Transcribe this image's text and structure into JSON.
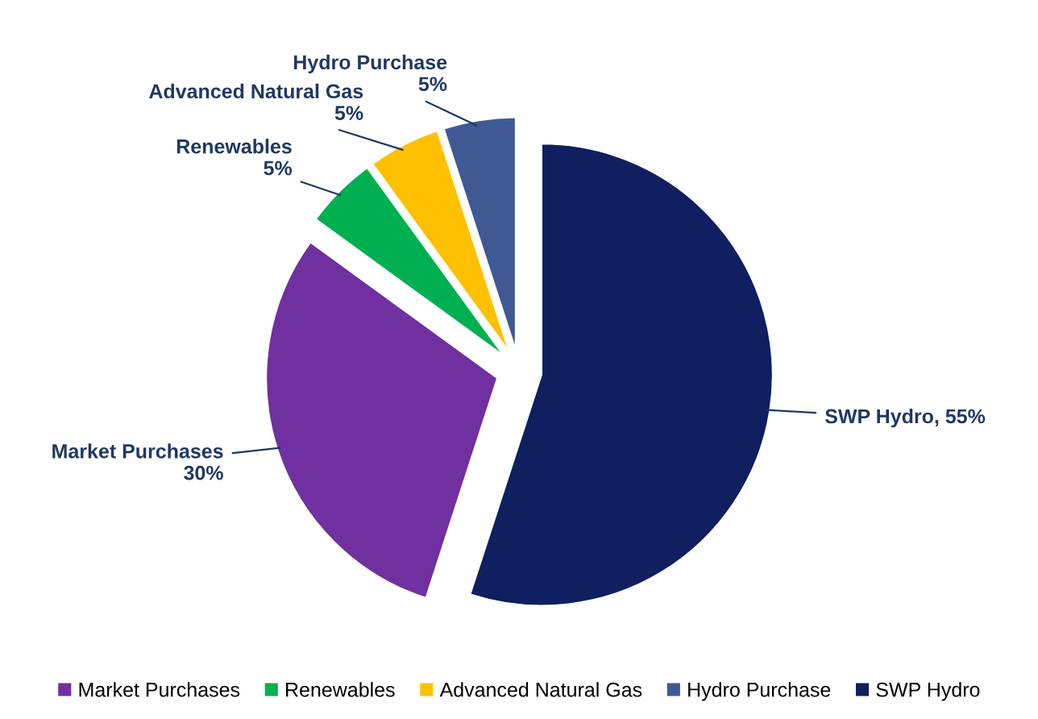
{
  "chart_data": {
    "type": "pie",
    "categories": [
      "Market Purchases",
      "Renewables",
      "Advanced Natural Gas",
      "Hydro Purchase",
      "SWP Hydro"
    ],
    "values": [
      30,
      5,
      5,
      5,
      55
    ],
    "colors": [
      "#7030a0",
      "#00b050",
      "#ffc000",
      "#3f5a92",
      "#0f1f5f"
    ],
    "annotations": [
      "Market Purchases\n30%",
      "Renewables\n5%",
      "Advanced Natural Gas\n5%",
      "Hydro Purchase\n5%",
      "SWP Hydro, 55%"
    ],
    "legend": "bottom"
  }
}
